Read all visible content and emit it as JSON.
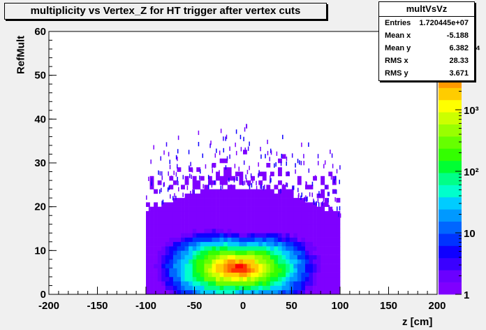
{
  "chart_data": {
    "type": "heatmap",
    "title": "multiplicity vs Vertex_Z for HT trigger after vertex cuts",
    "xlabel": "z [cm]",
    "ylabel": "RefMult",
    "xlim": [
      -200,
      200
    ],
    "ylim": [
      0,
      60
    ],
    "x_ticks": [
      "-200",
      "-150",
      "-100",
      "-50",
      "0",
      "50",
      "100",
      "150",
      "200"
    ],
    "y_ticks": [
      "0",
      "10",
      "20",
      "30",
      "40",
      "50",
      "60"
    ],
    "z_scale": "log",
    "z_ticks": [
      "1",
      "10",
      "10²",
      "10³",
      "10⁴"
    ],
    "filled_x_range": [
      -100,
      100
    ],
    "peak": {
      "x": -5,
      "y": 6
    },
    "color_palette": [
      "#7f00ff",
      "#6a00ff",
      "#3a00ff",
      "#0f00ff",
      "#0033ff",
      "#0066ff",
      "#0099ff",
      "#00ccff",
      "#00ffcc",
      "#00ff88",
      "#00ff33",
      "#33ff00",
      "#66ff00",
      "#99ff00",
      "#ccff00",
      "#ffff00",
      "#ffcc00",
      "#ff9900",
      "#ff6600",
      "#ff3300",
      "#ff0000"
    ]
  },
  "stats": {
    "title": "multVsVz",
    "rows": [
      {
        "label": "Entries",
        "value": "1.720445e+07"
      },
      {
        "label": "Mean x",
        "value": "-5.188"
      },
      {
        "label": "Mean y",
        "value": "6.382"
      },
      {
        "label": "RMS x",
        "value": "28.33"
      },
      {
        "label": "RMS y",
        "value": "3.671"
      }
    ]
  }
}
